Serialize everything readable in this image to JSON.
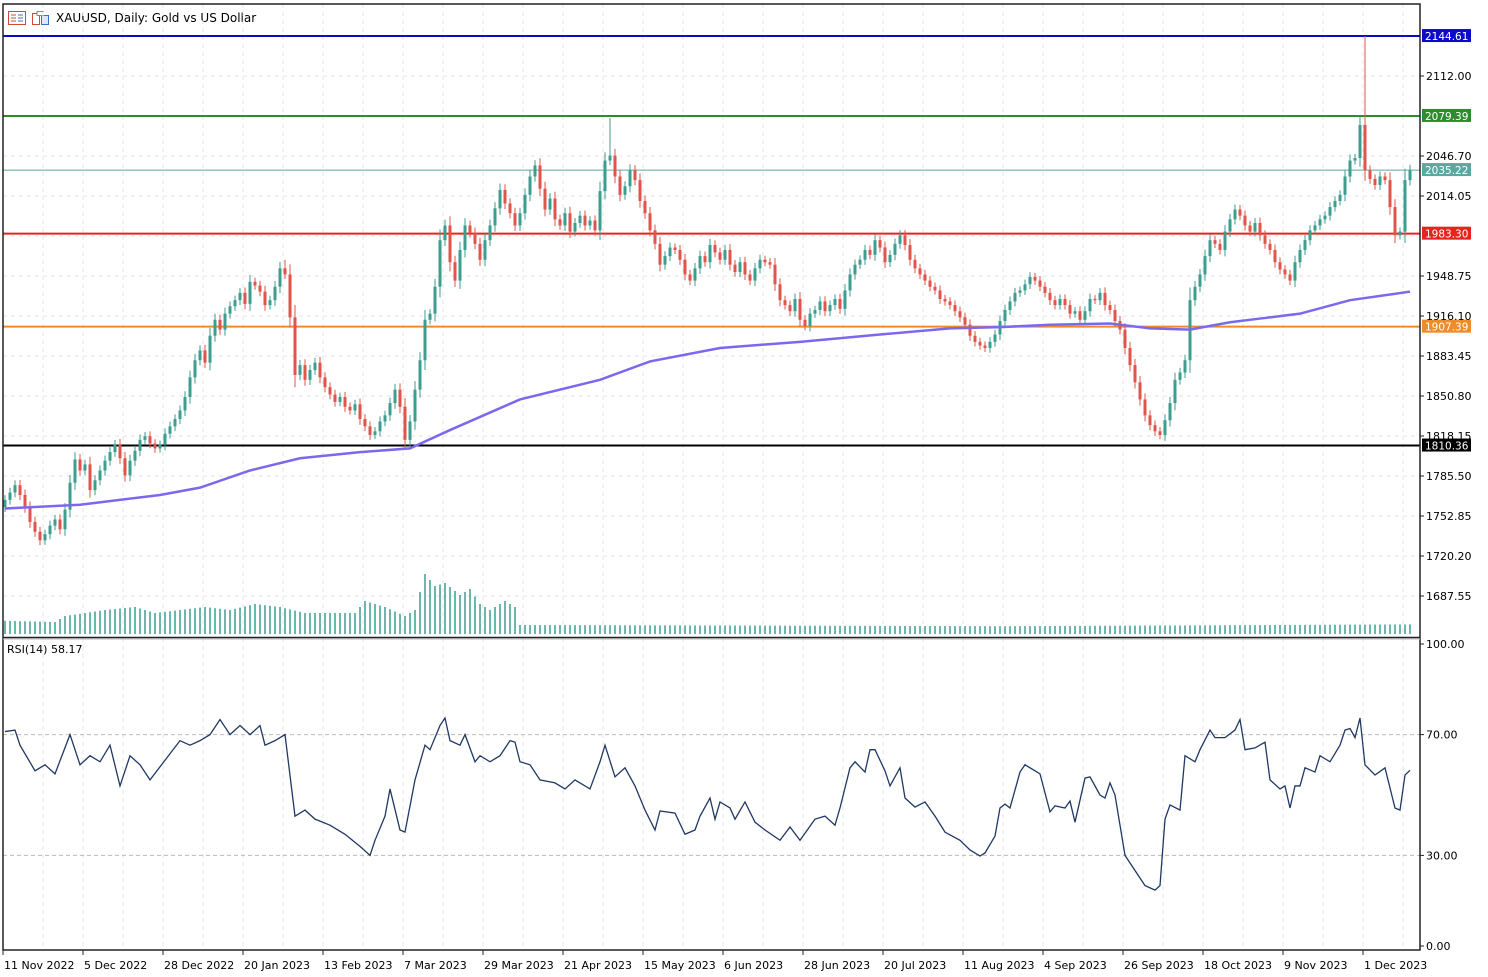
{
  "header": {
    "title": "XAUUSD, Daily:  Gold vs US Dollar",
    "icons": [
      "chart-list-icon",
      "chart-template-icon"
    ]
  },
  "colors": {
    "bull": "#3c9e8f",
    "bear": "#e0544c",
    "ma": "#7b68ee",
    "rsi": "#1f3864",
    "volume": "#3c9e8f",
    "bid_line": "#5aa9a0"
  },
  "chart_data": [
    {
      "type": "candlestick",
      "symbol": "XAUUSD",
      "timeframe": "Daily",
      "ylim": [
        1660,
        2162
      ],
      "grid": true,
      "y_ticks": [
        "2112.00",
        "2079.35",
        "2046.70",
        "2014.05",
        "1981.40",
        "1948.75",
        "1916.10",
        "1883.45",
        "1850.80",
        "1818.15",
        "1785.50",
        "1752.85",
        "1720.20",
        "1687.55"
      ],
      "x_tick_labels": [
        "11 Nov 2022",
        "5 Dec 2022",
        "28 Dec 2022",
        "20 Jan 2023",
        "13 Feb 2023",
        "7 Mar 2023",
        "29 Mar 2023",
        "21 Apr 2023",
        "15 May 2023",
        "6 Jun 2023",
        "28 Jun 2023",
        "20 Jul 2023",
        "11 Aug 2023",
        "4 Sep 2023",
        "26 Sep 2023",
        "18 Oct 2023",
        "9 Nov 2023",
        "1 Dec 2023"
      ],
      "first_open": 1760,
      "closes": [
        1766,
        1772,
        1778,
        1770,
        1760,
        1748,
        1740,
        1733,
        1738,
        1745,
        1750,
        1742,
        1758,
        1780,
        1799,
        1790,
        1795,
        1774,
        1782,
        1790,
        1798,
        1805,
        1811,
        1800,
        1786,
        1798,
        1806,
        1815,
        1818,
        1812,
        1808,
        1811,
        1820,
        1826,
        1832,
        1839,
        1850,
        1866,
        1880,
        1888,
        1878,
        1900,
        1913,
        1905,
        1918,
        1924,
        1929,
        1935,
        1926,
        1944,
        1941,
        1936,
        1925,
        1929,
        1940,
        1955,
        1950,
        1915,
        1868,
        1876,
        1864,
        1872,
        1878,
        1866,
        1858,
        1852,
        1846,
        1850,
        1842,
        1839,
        1844,
        1832,
        1826,
        1819,
        1822,
        1830,
        1835,
        1845,
        1856,
        1842,
        1815,
        1830,
        1856,
        1880,
        1913,
        1918,
        1940,
        1978,
        1990,
        1960,
        1945,
        1970,
        1990,
        1984,
        1975,
        1962,
        1978,
        1990,
        2004,
        2019,
        2008,
        2000,
        1990,
        2000,
        2015,
        2030,
        2039,
        2020,
        2003,
        2012,
        1995,
        1990,
        2000,
        1985,
        1992,
        1998,
        1990,
        1994,
        1986,
        2018,
        2043,
        2047,
        2030,
        2015,
        2022,
        2035,
        2027,
        2010,
        2000,
        1986,
        1975,
        1958,
        1965,
        1972,
        1970,
        1962,
        1950,
        1945,
        1955,
        1965,
        1960,
        1974,
        1968,
        1962,
        1970,
        1958,
        1952,
        1960,
        1950,
        1945,
        1955,
        1962,
        1960,
        1958,
        1942,
        1929,
        1925,
        1920,
        1930,
        1913,
        1908,
        1918,
        1921,
        1928,
        1920,
        1925,
        1930,
        1922,
        1937,
        1950,
        1958,
        1962,
        1970,
        1966,
        1978,
        1972,
        1960,
        1966,
        1975,
        1982,
        1974,
        1962,
        1955,
        1950,
        1945,
        1940,
        1937,
        1930,
        1928,
        1925,
        1920,
        1915,
        1909,
        1900,
        1895,
        1892,
        1890,
        1895,
        1901,
        1912,
        1921,
        1928,
        1935,
        1937,
        1942,
        1948,
        1945,
        1940,
        1935,
        1929,
        1925,
        1930,
        1925,
        1918,
        1920,
        1913,
        1920,
        1930,
        1929,
        1935,
        1925,
        1921,
        1912,
        1905,
        1890,
        1876,
        1862,
        1848,
        1835,
        1827,
        1822,
        1819,
        1831,
        1845,
        1864,
        1870,
        1880,
        1929,
        1940,
        1950,
        1965,
        1978,
        1975,
        1970,
        1985,
        1995,
        2003,
        1998,
        1990,
        1985,
        1992,
        1982,
        1975,
        1970,
        1960,
        1954,
        1950,
        1945,
        1960,
        1970,
        1978,
        1986,
        1990,
        1995,
        1998,
        2005,
        2010,
        2015,
        2030,
        2043,
        2045,
        2072,
        2035,
        2028,
        2023,
        2030,
        2027,
        2005,
        1982,
        1985,
        2027,
        2035.22
      ],
      "high_overrides": [
        [
          121,
          2077.7
        ],
        [
          272,
          2144.61
        ],
        [
          56,
          1962
        ]
      ],
      "moving_average": [
        [
          0,
          1759
        ],
        [
          15,
          1762
        ],
        [
          31,
          1770
        ],
        [
          39,
          1776
        ],
        [
          49,
          1790
        ],
        [
          59,
          1800
        ],
        [
          71,
          1805
        ],
        [
          81,
          1808
        ],
        [
          89,
          1823
        ],
        [
          103,
          1848
        ],
        [
          119,
          1864
        ],
        [
          129,
          1879
        ],
        [
          143,
          1890
        ],
        [
          159,
          1895
        ],
        [
          175,
          1901
        ],
        [
          189,
          1906
        ],
        [
          199,
          1907
        ],
        [
          209,
          1909
        ],
        [
          221,
          1910
        ],
        [
          229,
          1906
        ],
        [
          237,
          1905
        ],
        [
          245,
          1911
        ],
        [
          251,
          1914
        ],
        [
          259,
          1918
        ],
        [
          269,
          1929
        ],
        [
          281,
          1936
        ]
      ],
      "volume_relative_pct": [
        [
          0,
          22
        ],
        [
          10,
          20
        ],
        [
          12,
          30
        ],
        [
          20,
          40
        ],
        [
          26,
          45
        ],
        [
          30,
          35
        ],
        [
          35,
          40
        ],
        [
          40,
          45
        ],
        [
          45,
          40
        ],
        [
          50,
          50
        ],
        [
          55,
          45
        ],
        [
          60,
          35
        ],
        [
          70,
          35
        ],
        [
          72,
          55
        ],
        [
          76,
          45
        ],
        [
          80,
          30
        ],
        [
          82,
          40
        ],
        [
          83,
          70
        ],
        [
          84,
          100
        ],
        [
          86,
          80
        ],
        [
          88,
          85
        ],
        [
          91,
          65
        ],
        [
          93,
          75
        ],
        [
          95,
          50
        ],
        [
          97,
          40
        ],
        [
          100,
          55
        ],
        [
          102,
          45
        ],
        [
          103,
          15
        ],
        [
          200,
          13
        ],
        [
          281,
          16
        ]
      ],
      "levels": [
        {
          "value": "2144.61",
          "color": "#0a0ac8",
          "width": 2
        },
        {
          "value": "2079.39",
          "color": "#2e8b2e",
          "width": 2
        },
        {
          "value": "2035.22",
          "color": "#5aa9a0",
          "width": 1
        },
        {
          "value": "1983.30",
          "color": "#e8231c",
          "width": 2
        },
        {
          "value": "1907.39",
          "color": "#f08c28",
          "width": 2
        },
        {
          "value": "1810.36",
          "color": "#000000",
          "width": 2
        }
      ]
    },
    {
      "type": "line",
      "indicator_label": "RSI(14) 58.17",
      "ylim": [
        0,
        100
      ],
      "y_ticks": [
        "100.00",
        "70.00",
        "30.00",
        "0.00"
      ],
      "levels": [
        70,
        30
      ],
      "points": [
        [
          0,
          71
        ],
        [
          2,
          71.5
        ],
        [
          3,
          66.5
        ],
        [
          6,
          58
        ],
        [
          8,
          60
        ],
        [
          10,
          57
        ],
        [
          13,
          70
        ],
        [
          15,
          60
        ],
        [
          17,
          63
        ],
        [
          19,
          61
        ],
        [
          21,
          66.5
        ],
        [
          23,
          53
        ],
        [
          25,
          63
        ],
        [
          27,
          60
        ],
        [
          29,
          55
        ],
        [
          32,
          61.5
        ],
        [
          35,
          68
        ],
        [
          37,
          66.5
        ],
        [
          39,
          68
        ],
        [
          41,
          70
        ],
        [
          43,
          75
        ],
        [
          45,
          70
        ],
        [
          47,
          73
        ],
        [
          49,
          70
        ],
        [
          51,
          73
        ],
        [
          52,
          66.5
        ],
        [
          54,
          68
        ],
        [
          56,
          70
        ],
        [
          58,
          43
        ],
        [
          60,
          45
        ],
        [
          62,
          42
        ],
        [
          65,
          40
        ],
        [
          68,
          37
        ],
        [
          71,
          33
        ],
        [
          73,
          30
        ],
        [
          74,
          35
        ],
        [
          76,
          43
        ],
        [
          77,
          52
        ],
        [
          79,
          38.4
        ],
        [
          80,
          37.7
        ],
        [
          82,
          55
        ],
        [
          84,
          66.5
        ],
        [
          85,
          65
        ],
        [
          87,
          73
        ],
        [
          88,
          75.5
        ],
        [
          89,
          68
        ],
        [
          91,
          66.5
        ],
        [
          92,
          70
        ],
        [
          94,
          61
        ],
        [
          95,
          63
        ],
        [
          97,
          61
        ],
        [
          99,
          63
        ],
        [
          101,
          68
        ],
        [
          102,
          67.5
        ],
        [
          103,
          61
        ],
        [
          105,
          60
        ],
        [
          107,
          55
        ],
        [
          110,
          54
        ],
        [
          112,
          52
        ],
        [
          114,
          55
        ],
        [
          117,
          52
        ],
        [
          119,
          61
        ],
        [
          120,
          66.5
        ],
        [
          122,
          56
        ],
        [
          124,
          59
        ],
        [
          126,
          53
        ],
        [
          128,
          45
        ],
        [
          130,
          38.4
        ],
        [
          131,
          44.7
        ],
        [
          134,
          44
        ],
        [
          136,
          37
        ],
        [
          138,
          38.4
        ],
        [
          139,
          43
        ],
        [
          141,
          49
        ],
        [
          142,
          42
        ],
        [
          143,
          47.7
        ],
        [
          145,
          45.7
        ],
        [
          146,
          42
        ],
        [
          148,
          47.7
        ],
        [
          150,
          41
        ],
        [
          152,
          38.4
        ],
        [
          155,
          35
        ],
        [
          157,
          39.4
        ],
        [
          159,
          35
        ],
        [
          162,
          42
        ],
        [
          164,
          43
        ],
        [
          166,
          40
        ],
        [
          167,
          45.7
        ],
        [
          169,
          59
        ],
        [
          170,
          61
        ],
        [
          172,
          57.6
        ],
        [
          173,
          65
        ],
        [
          174,
          65
        ],
        [
          176,
          58
        ],
        [
          177,
          53
        ],
        [
          179,
          59
        ],
        [
          180,
          49
        ],
        [
          182,
          46
        ],
        [
          184,
          47.7
        ],
        [
          186,
          43
        ],
        [
          188,
          37.7
        ],
        [
          191,
          35
        ],
        [
          193,
          31.8
        ],
        [
          195,
          29.8
        ],
        [
          196,
          30.8
        ],
        [
          198,
          36.4
        ],
        [
          199,
          45.7
        ],
        [
          200,
          47
        ],
        [
          201,
          45.7
        ],
        [
          203,
          57.6
        ],
        [
          204,
          60
        ],
        [
          206,
          58
        ],
        [
          207,
          57
        ],
        [
          209,
          44.4
        ],
        [
          210,
          46.4
        ],
        [
          212,
          45.7
        ],
        [
          213,
          48
        ],
        [
          214,
          41
        ],
        [
          216,
          55.6
        ],
        [
          217,
          56
        ],
        [
          219,
          50
        ],
        [
          220,
          49
        ],
        [
          221,
          54
        ],
        [
          222,
          50
        ],
        [
          224,
          30
        ],
        [
          226,
          25
        ],
        [
          228,
          20
        ],
        [
          230,
          18.5
        ],
        [
          231,
          20
        ],
        [
          232,
          42
        ],
        [
          233,
          46.7
        ],
        [
          235,
          45
        ],
        [
          236,
          63
        ],
        [
          238,
          61
        ],
        [
          239,
          65
        ],
        [
          241,
          71.5
        ],
        [
          242,
          69
        ],
        [
          244,
          69
        ],
        [
          246,
          71.5
        ],
        [
          247,
          75
        ],
        [
          248,
          65
        ],
        [
          250,
          65.6
        ],
        [
          252,
          67.5
        ],
        [
          253,
          55
        ],
        [
          255,
          52
        ],
        [
          256,
          53
        ],
        [
          257,
          45.7
        ],
        [
          258,
          53
        ],
        [
          259,
          53
        ],
        [
          260,
          59
        ],
        [
          262,
          57.6
        ],
        [
          263,
          63
        ],
        [
          265,
          61
        ],
        [
          267,
          66.5
        ],
        [
          268,
          71.5
        ],
        [
          269,
          72
        ],
        [
          270,
          69
        ],
        [
          271,
          75.5
        ],
        [
          272,
          60
        ],
        [
          274,
          56.6
        ],
        [
          276,
          59
        ],
        [
          278,
          45.7
        ],
        [
          279,
          45
        ],
        [
          280,
          56.6
        ],
        [
          281,
          58.17
        ]
      ]
    }
  ]
}
